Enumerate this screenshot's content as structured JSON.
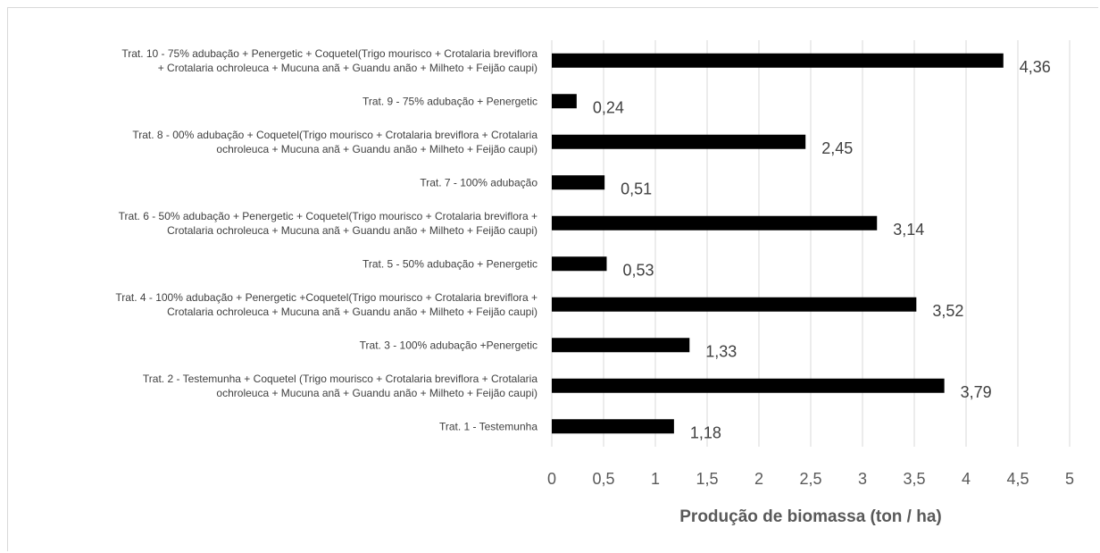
{
  "chart_data": {
    "type": "bar",
    "orientation": "horizontal",
    "categories": [
      [
        "Trat. 10 - 75% adubação + Penergetic  + Coquetel(Trigo mourisco + Crotalaria breviflora",
        "+ Crotalaria ochroleuca + Mucuna anã + Guandu anão + Milheto + Feijão caupi)"
      ],
      [
        "Trat. 9 - 75% adubação + Penergetic"
      ],
      [
        "Trat. 8 - 00% adubação  + Coquetel(Trigo mourisco + Crotalaria breviflora + Crotalaria",
        "ochroleuca + Mucuna anã + Guandu anão + Milheto + Feijão caupi)"
      ],
      [
        "Trat. 7 - 100% adubação"
      ],
      [
        "Trat. 6 - 50% adubação + Penergetic  + Coquetel(Trigo mourisco + Crotalaria breviflora +",
        "Crotalaria ochroleuca + Mucuna anã + Guandu anão + Milheto + Feijão caupi)"
      ],
      [
        "Trat. 5 - 50% adubação + Penergetic"
      ],
      [
        "Trat. 4 - 100% adubação + Penergetic  +Coquetel(Trigo mourisco + Crotalaria breviflora +",
        "Crotalaria ochroleuca + Mucuna anã + Guandu anão + Milheto + Feijão caupi)"
      ],
      [
        "Trat. 3 - 100% adubação +Penergetic"
      ],
      [
        "Trat. 2 - Testemunha + Coquetel  (Trigo mourisco + Crotalaria breviflora + Crotalaria",
        "ochroleuca + Mucuna anã + Guandu anão + Milheto + Feijão caupi)"
      ],
      [
        "Trat. 1 - Testemunha"
      ]
    ],
    "values": [
      4.36,
      0.24,
      2.45,
      0.51,
      3.14,
      0.53,
      3.52,
      1.33,
      3.79,
      1.18
    ],
    "value_labels": [
      "4,36",
      "0,24",
      "2,45",
      "0,51",
      "3,14",
      "0,53",
      "3,52",
      "1,33",
      "3,79",
      "1,18"
    ],
    "xlim": [
      0,
      5
    ],
    "ticks": [
      0,
      0.5,
      1,
      1.5,
      2,
      2.5,
      3,
      3.5,
      4,
      4.5,
      5
    ],
    "tick_labels": [
      "0",
      "0,5",
      "1",
      "1,5",
      "2",
      "2,5",
      "3",
      "3,5",
      "4",
      "4,5",
      "5"
    ],
    "xlabel": "Produção de biomassa (ton / ha)",
    "ylabel": "",
    "title": "",
    "grid": true,
    "bar_color": "#000000",
    "grid_color": "#d9d9d9",
    "text_color": "#404040"
  }
}
